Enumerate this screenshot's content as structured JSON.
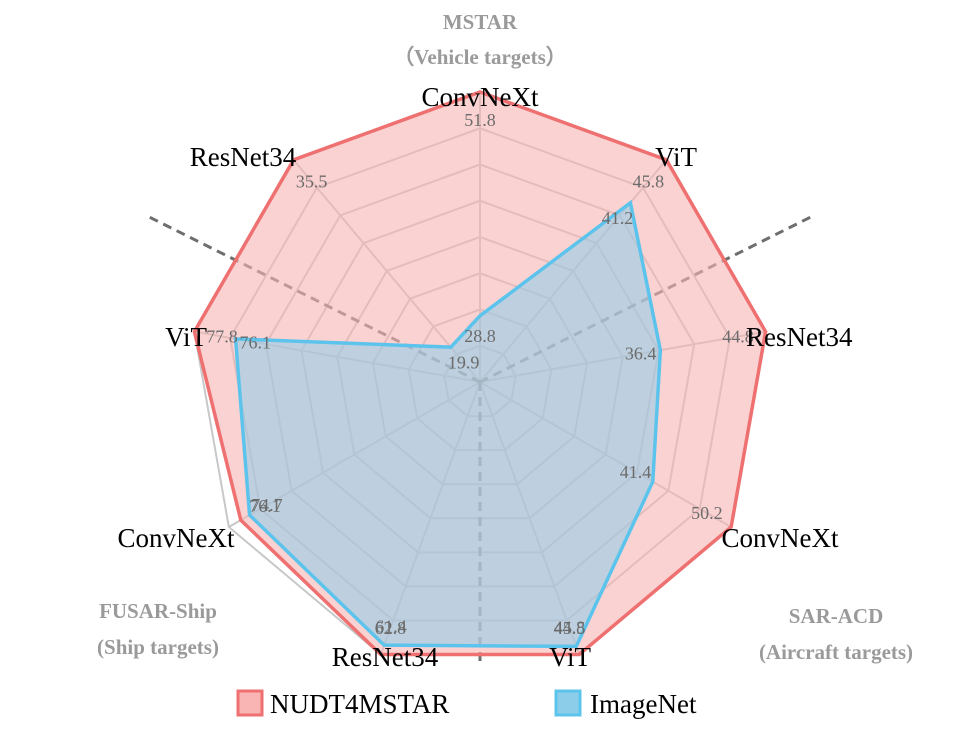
{
  "colors": {
    "nudt4mstar_stroke": "#ee7070",
    "nudt4mstar_fill": "#f9b4b4",
    "imagenet_stroke": "#5cc4ec",
    "imagenet_fill": "#8ccdea",
    "grid": "#c8c8c8",
    "divider": "#6e6e6e",
    "group_label": "#9a9a9a"
  },
  "chart_data": {
    "type": "radar",
    "axes": [
      "ConvNeXt",
      "ViT",
      "ResNet34",
      "ConvNeXt",
      "ViT",
      "ResNet34",
      "ConvNeXt",
      "ViT",
      "ResNet34"
    ],
    "groups": [
      {
        "title": "MSTAR",
        "subtitle": "（Vehicle targets）",
        "axes": [
          "ConvNeXt",
          "ViT",
          "ResNet34"
        ]
      },
      {
        "title": "SAR-ACD",
        "subtitle": "(Aircraft targets)",
        "axes": [
          "ConvNeXt",
          "ViT",
          "ResNet34"
        ]
      },
      {
        "title": "FUSAR-Ship",
        "subtitle": "(Ship targets)",
        "axes": [
          "ConvNeXt",
          "ViT",
          "ResNet34"
        ]
      }
    ],
    "series": [
      {
        "name": "NUDT4MSTAR",
        "values": [
          51.8,
          45.8,
          44.8,
          50.2,
          45.5,
          62.8,
          76.1,
          77.8,
          35.5
        ],
        "labels": [
          "51.8",
          "45.8",
          "44.8",
          "50.2",
          "45.5",
          "62.8",
          "76.1",
          "77.8",
          "35.5"
        ]
      },
      {
        "name": "ImageNet",
        "values": [
          28.8,
          41.2,
          36.4,
          41.4,
          44.8,
          61.4,
          74.7,
          76.1,
          19.9
        ],
        "labels": [
          "28.8",
          "41.2",
          "36.4",
          "41.4",
          "44.8",
          "61.4",
          "74.7",
          "76.1",
          "19.9"
        ]
      }
    ],
    "axis_ranges": [
      [
        22,
        51.8
      ],
      [
        22,
        45.8
      ],
      [
        22,
        44.8
      ],
      [
        22,
        50.2
      ],
      [
        22,
        45.5
      ],
      [
        22,
        62.8
      ],
      [
        38,
        78
      ],
      [
        66,
        77.8
      ],
      [
        17,
        35.5
      ]
    ],
    "grid_levels": 8,
    "legend": "bottom"
  }
}
